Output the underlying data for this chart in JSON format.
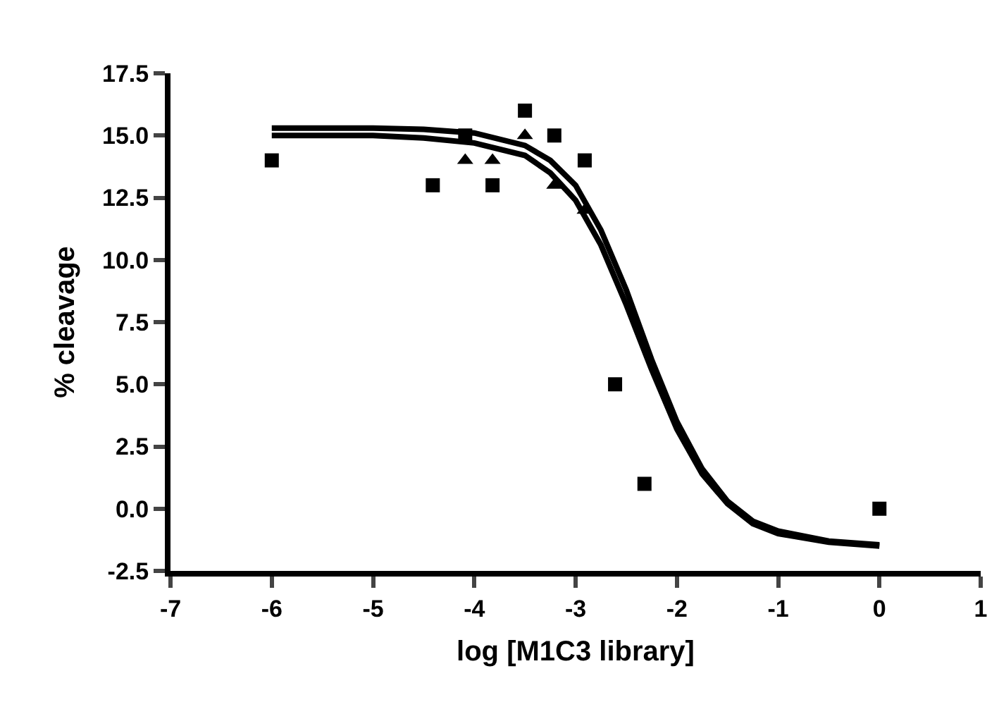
{
  "chart_data": {
    "type": "scatter",
    "xlabel": "log [M1C3 library]",
    "ylabel": "% cleavage",
    "xlim": [
      -7,
      1
    ],
    "xticks": [
      -7,
      -6,
      -5,
      -4,
      -3,
      -2,
      -1,
      0,
      1
    ],
    "ylim": [
      -2.5,
      17.5
    ],
    "yticks": [
      {
        "value": -2.5,
        "label": "-2.5"
      },
      {
        "value": 0,
        "label": "0.0"
      },
      {
        "value": 2.5,
        "label": "2.5"
      },
      {
        "value": 5,
        "label": "5.0"
      },
      {
        "value": 7.5,
        "label": "7.5"
      },
      {
        "value": 10,
        "label": "10.0"
      },
      {
        "value": 12.5,
        "label": "12.5"
      },
      {
        "value": 15,
        "label": "15.0"
      },
      {
        "value": 17.5,
        "label": "17.5"
      }
    ],
    "series": [
      {
        "marker": "square",
        "color": "#000000",
        "x": [
          -6,
          -4.41,
          -4.09,
          -3.82,
          -3.5,
          -3.21,
          -2.91,
          -2.61,
          -2.32,
          0
        ],
        "values": [
          14,
          13,
          15,
          13,
          16,
          15,
          14,
          5,
          1,
          0
        ]
      },
      {
        "marker": "triangle",
        "color": "#000000",
        "x": [
          -4.09,
          -3.82,
          -3.5,
          -3.21,
          -2.91
        ],
        "values": [
          14,
          14,
          15,
          13,
          12
        ]
      },
      {
        "type": "line",
        "marker": "none",
        "color": "#000000",
        "x": [
          -6,
          -5,
          -4.5,
          -4,
          -3.5,
          -3.25,
          -3,
          -2.75,
          -2.5,
          -2.25,
          -2,
          -1.75,
          -1.5,
          -1.25,
          -1,
          -0.5,
          0
        ],
        "values": [
          15.3,
          15.3,
          15.25,
          15.1,
          14.6,
          14.0,
          13.0,
          11.2,
          8.8,
          6.0,
          3.5,
          1.6,
          0.3,
          -0.5,
          -0.9,
          -1.3,
          -1.45
        ]
      },
      {
        "type": "line",
        "marker": "none",
        "color": "#000000",
        "x": [
          -6,
          -5,
          -4.5,
          -4,
          -3.5,
          -3.25,
          -3,
          -2.75,
          -2.5,
          -2.25,
          -2,
          -1.75,
          -1.5,
          -1.25,
          -1,
          -0.5,
          0
        ],
        "values": [
          15.0,
          15.0,
          14.9,
          14.7,
          14.2,
          13.5,
          12.4,
          10.6,
          8.2,
          5.6,
          3.2,
          1.4,
          0.2,
          -0.6,
          -1.0,
          -1.35,
          -1.5
        ]
      }
    ]
  }
}
